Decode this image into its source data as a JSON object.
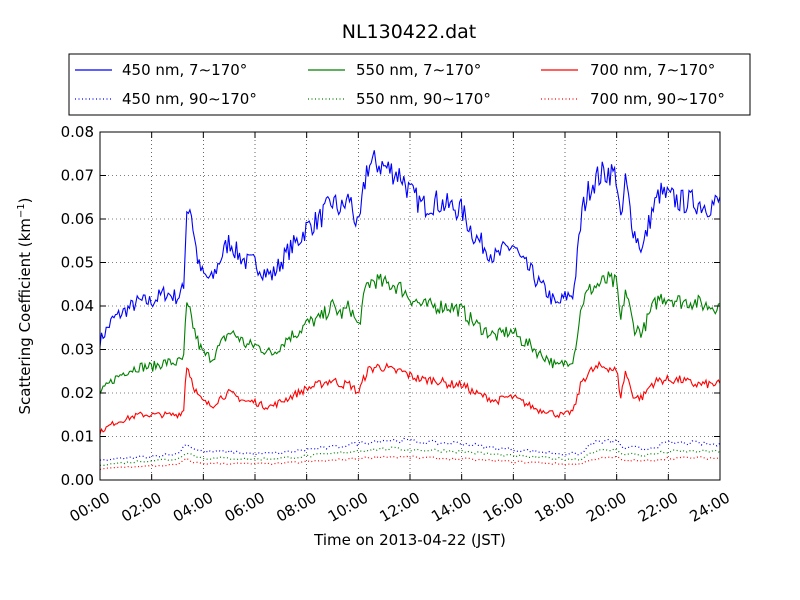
{
  "chart_data": {
    "type": "line",
    "title": "NL130422.dat",
    "xlabel": "Time on 2013-04-22 (JST)",
    "ylabel_main": "Scattering Coefficient (km",
    "ylabel_sup": "−1",
    "ylabel_end": ")",
    "xlim": [
      "00:00",
      "24:00"
    ],
    "ylim": [
      0.0,
      0.08
    ],
    "xticks": [
      "00:00",
      "02:00",
      "04:00",
      "06:00",
      "08:00",
      "10:00",
      "12:00",
      "14:00",
      "16:00",
      "18:00",
      "20:00",
      "22:00",
      "24:00"
    ],
    "yticks": [
      "0.00",
      "0.01",
      "0.02",
      "0.03",
      "0.04",
      "0.05",
      "0.06",
      "0.07",
      "0.08"
    ],
    "grid": true,
    "legend_position": "top",
    "series": [
      {
        "name": "450 nm, 7∼170°",
        "color": "#0000ff",
        "style": "solid",
        "x": [
          "00:00",
          "00:30",
          "01:00",
          "01:30",
          "02:00",
          "02:30",
          "03:00",
          "03:15",
          "03:20",
          "03:30",
          "03:40",
          "03:50",
          "04:00",
          "04:20",
          "04:40",
          "05:00",
          "05:20",
          "05:40",
          "06:00",
          "06:20",
          "06:40",
          "07:00",
          "07:20",
          "07:40",
          "08:00",
          "08:30",
          "09:00",
          "09:20",
          "09:40",
          "10:00",
          "10:20",
          "10:40",
          "11:00",
          "11:20",
          "11:40",
          "12:00",
          "12:30",
          "13:00",
          "13:30",
          "14:00",
          "14:30",
          "15:00",
          "15:20",
          "15:40",
          "16:00",
          "16:20",
          "16:40",
          "17:00",
          "17:20",
          "17:40",
          "18:00",
          "18:20",
          "18:40",
          "19:00",
          "19:20",
          "19:40",
          "20:00",
          "20:10",
          "20:20",
          "20:40",
          "21:00",
          "21:20",
          "21:40",
          "22:00",
          "22:30",
          "23:00",
          "23:30",
          "24:00"
        ],
        "values": [
          0.032,
          0.037,
          0.039,
          0.041,
          0.041,
          0.043,
          0.042,
          0.044,
          0.062,
          0.063,
          0.055,
          0.049,
          0.047,
          0.046,
          0.051,
          0.055,
          0.052,
          0.05,
          0.05,
          0.048,
          0.047,
          0.05,
          0.053,
          0.055,
          0.058,
          0.06,
          0.064,
          0.062,
          0.065,
          0.057,
          0.072,
          0.073,
          0.072,
          0.071,
          0.07,
          0.066,
          0.063,
          0.064,
          0.063,
          0.062,
          0.056,
          0.053,
          0.051,
          0.053,
          0.054,
          0.05,
          0.048,
          0.045,
          0.043,
          0.04,
          0.042,
          0.043,
          0.062,
          0.068,
          0.07,
          0.071,
          0.07,
          0.058,
          0.069,
          0.057,
          0.053,
          0.061,
          0.066,
          0.065,
          0.064,
          0.064,
          0.063,
          0.064
        ]
      },
      {
        "name": "550 nm, 7∼170°",
        "color": "#008000",
        "style": "solid",
        "x": [
          "00:00",
          "00:30",
          "01:00",
          "01:30",
          "02:00",
          "02:30",
          "03:00",
          "03:15",
          "03:20",
          "03:30",
          "03:40",
          "03:50",
          "04:00",
          "04:20",
          "04:40",
          "05:00",
          "05:20",
          "05:40",
          "06:00",
          "06:20",
          "06:40",
          "07:00",
          "07:20",
          "07:40",
          "08:00",
          "08:30",
          "09:00",
          "09:20",
          "09:40",
          "10:00",
          "10:20",
          "10:40",
          "11:00",
          "11:20",
          "11:40",
          "12:00",
          "12:30",
          "13:00",
          "13:30",
          "14:00",
          "14:30",
          "15:00",
          "15:20",
          "15:40",
          "16:00",
          "16:20",
          "16:40",
          "17:00",
          "17:20",
          "17:40",
          "18:00",
          "18:20",
          "18:40",
          "19:00",
          "19:20",
          "19:40",
          "20:00",
          "20:10",
          "20:20",
          "20:40",
          "21:00",
          "21:20",
          "21:40",
          "22:00",
          "22:30",
          "23:00",
          "23:30",
          "24:00"
        ],
        "values": [
          0.02,
          0.023,
          0.025,
          0.026,
          0.026,
          0.027,
          0.027,
          0.028,
          0.04,
          0.038,
          0.034,
          0.031,
          0.029,
          0.028,
          0.031,
          0.034,
          0.033,
          0.031,
          0.031,
          0.03,
          0.029,
          0.031,
          0.033,
          0.034,
          0.036,
          0.037,
          0.04,
          0.038,
          0.04,
          0.035,
          0.045,
          0.046,
          0.045,
          0.045,
          0.044,
          0.042,
          0.04,
          0.04,
          0.04,
          0.039,
          0.036,
          0.034,
          0.033,
          0.034,
          0.034,
          0.032,
          0.031,
          0.029,
          0.028,
          0.026,
          0.027,
          0.028,
          0.041,
          0.044,
          0.045,
          0.046,
          0.045,
          0.036,
          0.044,
          0.035,
          0.034,
          0.039,
          0.042,
          0.042,
          0.041,
          0.041,
          0.04,
          0.04
        ]
      },
      {
        "name": "700 nm, 7∼170°",
        "color": "#ff0000",
        "style": "solid",
        "x": [
          "00:00",
          "00:30",
          "01:00",
          "01:30",
          "02:00",
          "02:30",
          "03:00",
          "03:15",
          "03:20",
          "03:30",
          "03:40",
          "03:50",
          "04:00",
          "04:20",
          "04:40",
          "05:00",
          "05:20",
          "05:40",
          "06:00",
          "06:20",
          "06:40",
          "07:00",
          "07:20",
          "07:40",
          "08:00",
          "08:30",
          "09:00",
          "09:20",
          "09:40",
          "10:00",
          "10:20",
          "10:40",
          "11:00",
          "11:20",
          "11:40",
          "12:00",
          "12:30",
          "13:00",
          "13:30",
          "14:00",
          "14:30",
          "15:00",
          "15:20",
          "15:40",
          "16:00",
          "16:20",
          "16:40",
          "17:00",
          "17:20",
          "17:40",
          "18:00",
          "18:20",
          "18:40",
          "19:00",
          "19:20",
          "19:40",
          "20:00",
          "20:10",
          "20:20",
          "20:40",
          "21:00",
          "21:20",
          "21:40",
          "22:00",
          "22:30",
          "23:00",
          "23:30",
          "24:00"
        ],
        "values": [
          0.011,
          0.013,
          0.014,
          0.015,
          0.015,
          0.015,
          0.015,
          0.016,
          0.027,
          0.024,
          0.021,
          0.019,
          0.018,
          0.017,
          0.019,
          0.02,
          0.019,
          0.018,
          0.018,
          0.017,
          0.017,
          0.018,
          0.019,
          0.02,
          0.021,
          0.022,
          0.023,
          0.022,
          0.022,
          0.02,
          0.025,
          0.026,
          0.026,
          0.025,
          0.025,
          0.024,
          0.023,
          0.023,
          0.022,
          0.022,
          0.02,
          0.019,
          0.018,
          0.019,
          0.019,
          0.018,
          0.017,
          0.016,
          0.016,
          0.015,
          0.015,
          0.016,
          0.023,
          0.025,
          0.026,
          0.026,
          0.025,
          0.019,
          0.025,
          0.019,
          0.019,
          0.022,
          0.023,
          0.023,
          0.023,
          0.022,
          0.022,
          0.022
        ]
      },
      {
        "name": "450 nm, 90∼170°",
        "color": "#0000ff",
        "style": "dotted",
        "x": [
          "00:00",
          "01:00",
          "02:00",
          "03:00",
          "03:20",
          "03:40",
          "04:00",
          "05:00",
          "06:00",
          "07:00",
          "08:00",
          "09:00",
          "10:00",
          "11:00",
          "12:00",
          "13:00",
          "14:00",
          "15:00",
          "16:00",
          "17:00",
          "18:00",
          "18:40",
          "19:00",
          "20:00",
          "20:20",
          "20:40",
          "21:00",
          "22:00",
          "23:00",
          "24:00"
        ],
        "values": [
          0.0045,
          0.005,
          0.0055,
          0.006,
          0.0085,
          0.007,
          0.0065,
          0.0065,
          0.006,
          0.0062,
          0.007,
          0.0075,
          0.0085,
          0.0092,
          0.009,
          0.0085,
          0.0085,
          0.0075,
          0.007,
          0.0065,
          0.006,
          0.006,
          0.0085,
          0.009,
          0.007,
          0.0075,
          0.007,
          0.0085,
          0.0085,
          0.008
        ]
      },
      {
        "name": "550 nm, 90∼170°",
        "color": "#008000",
        "style": "dotted",
        "x": [
          "00:00",
          "01:00",
          "02:00",
          "03:00",
          "03:20",
          "03:40",
          "04:00",
          "05:00",
          "06:00",
          "07:00",
          "08:00",
          "09:00",
          "10:00",
          "11:00",
          "12:00",
          "13:00",
          "14:00",
          "15:00",
          "16:00",
          "17:00",
          "18:00",
          "18:40",
          "19:00",
          "20:00",
          "20:20",
          "20:40",
          "21:00",
          "22:00",
          "23:00",
          "24:00"
        ],
        "values": [
          0.0035,
          0.004,
          0.0045,
          0.0048,
          0.0065,
          0.0055,
          0.005,
          0.005,
          0.0048,
          0.005,
          0.0055,
          0.006,
          0.0068,
          0.0072,
          0.007,
          0.0068,
          0.0066,
          0.006,
          0.0055,
          0.0052,
          0.0048,
          0.0048,
          0.0065,
          0.007,
          0.0058,
          0.006,
          0.0056,
          0.0065,
          0.0066,
          0.0065
        ]
      },
      {
        "name": "700 nm, 90∼170°",
        "color": "#ff0000",
        "style": "dotted",
        "x": [
          "00:00",
          "01:00",
          "02:00",
          "03:00",
          "03:20",
          "03:40",
          "04:00",
          "05:00",
          "06:00",
          "07:00",
          "08:00",
          "09:00",
          "10:00",
          "11:00",
          "12:00",
          "13:00",
          "14:00",
          "15:00",
          "16:00",
          "17:00",
          "18:00",
          "18:40",
          "19:00",
          "20:00",
          "20:20",
          "20:40",
          "21:00",
          "22:00",
          "23:00",
          "24:00"
        ],
        "values": [
          0.0025,
          0.003,
          0.0032,
          0.0035,
          0.0048,
          0.004,
          0.0038,
          0.0038,
          0.0037,
          0.0038,
          0.0042,
          0.0045,
          0.005,
          0.0054,
          0.0052,
          0.005,
          0.0048,
          0.0045,
          0.0042,
          0.004,
          0.0036,
          0.0037,
          0.0048,
          0.0052,
          0.0044,
          0.0045,
          0.0043,
          0.005,
          0.0051,
          0.005
        ]
      }
    ]
  }
}
